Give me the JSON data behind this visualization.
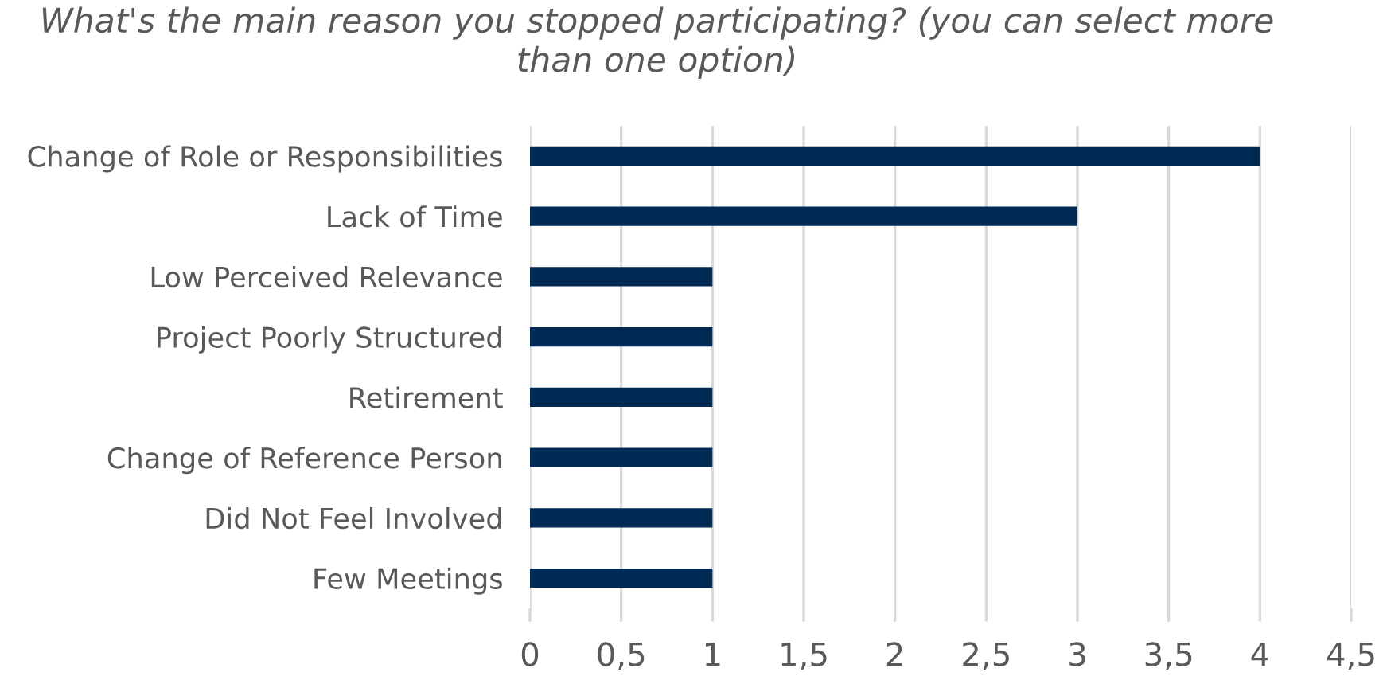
{
  "chart_data": {
    "type": "bar",
    "orientation": "horizontal",
    "title": "What's the main reason you stopped participating? (you can select more than one option)",
    "categories": [
      "Change of Role or Responsibilities",
      "Lack of Time",
      "Low Perceived Relevance",
      "Project Poorly Structured",
      "Retirement",
      "Change of Reference Person",
      "Did Not Feel Involved",
      "Few Meetings"
    ],
    "values": [
      4,
      3,
      1,
      1,
      1,
      1,
      1,
      1
    ],
    "color": "#002a54",
    "xlim": [
      0,
      4.5
    ],
    "xticks": [
      0,
      {
        "value": 0.5,
        "label": "0,5"
      },
      1,
      {
        "value": 1.5,
        "label": "1,5"
      },
      2,
      {
        "value": 2.5,
        "label": "2,5"
      },
      3,
      {
        "value": 3.5,
        "label": "3,5"
      },
      4,
      {
        "value": 4.5,
        "label": "4,5"
      }
    ],
    "grid": "x",
    "legend": false
  }
}
